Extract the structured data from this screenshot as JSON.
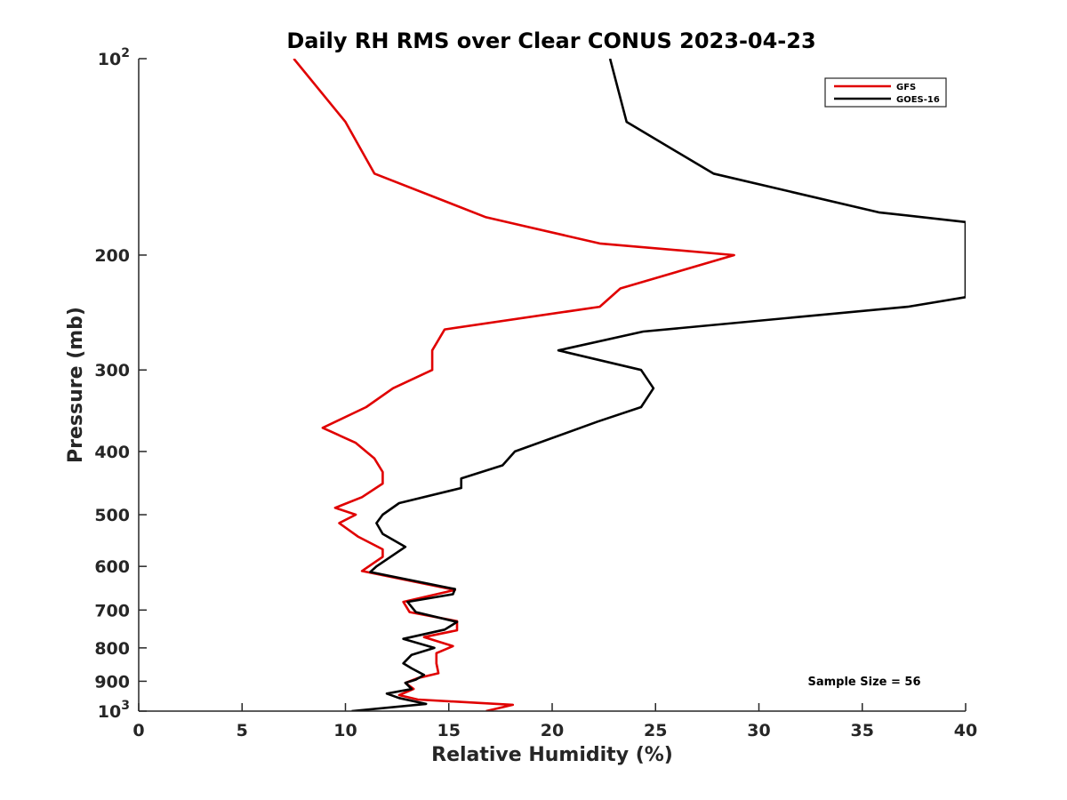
{
  "chart_data": {
    "type": "line",
    "title": "Daily RH RMS over Clear CONUS 2023-04-23",
    "xlabel": "Relative Humidity (%)",
    "ylabel": "Pressure (mb)",
    "xlim": [
      0,
      40
    ],
    "ylim": [
      100,
      1000
    ],
    "y_scale": "log",
    "y_reversed": true,
    "x_ticks": [
      0,
      5,
      10,
      15,
      20,
      25,
      30,
      35,
      40
    ],
    "x_tick_labels": [
      "0",
      "5",
      "10",
      "15",
      "20",
      "25",
      "30",
      "35",
      "40"
    ],
    "y_ticks": [
      100,
      200,
      300,
      400,
      500,
      600,
      700,
      800,
      900,
      1000
    ],
    "y_tick_labels": [
      {
        "base": "10",
        "exp": "2"
      },
      {
        "base": "200",
        "exp": ""
      },
      {
        "base": "300",
        "exp": ""
      },
      {
        "base": "400",
        "exp": ""
      },
      {
        "base": "500",
        "exp": ""
      },
      {
        "base": "600",
        "exp": ""
      },
      {
        "base": "700",
        "exp": ""
      },
      {
        "base": "800",
        "exp": ""
      },
      {
        "base": "900",
        "exp": ""
      },
      {
        "base": "10",
        "exp": "3"
      }
    ],
    "grid": false,
    "legend_position": "top-right",
    "annotation": "Sample Size = 56",
    "series": [
      {
        "name": "GFS",
        "color": "#e00000",
        "points": [
          [
            7.5,
            100
          ],
          [
            10.0,
            125
          ],
          [
            11.4,
            150
          ],
          [
            16.8,
            175
          ],
          [
            22.3,
            192
          ],
          [
            28.8,
            200
          ],
          [
            23.3,
            225
          ],
          [
            22.3,
            240
          ],
          [
            14.8,
            260
          ],
          [
            14.2,
            280
          ],
          [
            14.2,
            300
          ],
          [
            12.3,
            320
          ],
          [
            11.0,
            342
          ],
          [
            8.9,
            368
          ],
          [
            10.5,
            388
          ],
          [
            11.4,
            410
          ],
          [
            11.8,
            430
          ],
          [
            11.8,
            448
          ],
          [
            10.8,
            470
          ],
          [
            9.5,
            488
          ],
          [
            10.5,
            500
          ],
          [
            9.7,
            515
          ],
          [
            10.6,
            540
          ],
          [
            11.8,
            565
          ],
          [
            11.8,
            580
          ],
          [
            10.8,
            610
          ],
          [
            15.3,
            652
          ],
          [
            12.8,
            680
          ],
          [
            13.1,
            705
          ],
          [
            15.4,
            728
          ],
          [
            15.4,
            752
          ],
          [
            13.8,
            770
          ],
          [
            15.2,
            795
          ],
          [
            14.4,
            815
          ],
          [
            14.4,
            845
          ],
          [
            14.5,
            875
          ],
          [
            13.5,
            890
          ],
          [
            12.9,
            905
          ],
          [
            13.3,
            925
          ],
          [
            12.6,
            945
          ],
          [
            13.5,
            960
          ],
          [
            18.1,
            978
          ],
          [
            16.8,
            1000
          ]
        ]
      },
      {
        "name": "GOES-16",
        "color": "#000000",
        "points": [
          [
            22.8,
            100
          ],
          [
            23.6,
            125
          ],
          [
            27.8,
            150
          ],
          [
            35.8,
            172
          ],
          [
            40.0,
            178
          ],
          [
            40.0,
            232
          ],
          [
            37.2,
            240
          ],
          [
            24.4,
            262
          ],
          [
            20.3,
            280
          ],
          [
            24.3,
            300
          ],
          [
            24.9,
            320
          ],
          [
            24.3,
            342
          ],
          [
            22.2,
            360
          ],
          [
            18.2,
            400
          ],
          [
            17.6,
            420
          ],
          [
            15.6,
            440
          ],
          [
            15.6,
            455
          ],
          [
            12.6,
            480
          ],
          [
            11.8,
            500
          ],
          [
            11.5,
            515
          ],
          [
            11.8,
            535
          ],
          [
            12.9,
            560
          ],
          [
            11.5,
            600
          ],
          [
            11.2,
            612
          ],
          [
            15.3,
            650
          ],
          [
            15.2,
            662
          ],
          [
            13.0,
            680
          ],
          [
            13.4,
            705
          ],
          [
            15.4,
            730
          ],
          [
            14.8,
            750
          ],
          [
            12.8,
            775
          ],
          [
            14.3,
            800
          ],
          [
            13.2,
            820
          ],
          [
            12.8,
            845
          ],
          [
            13.2,
            860
          ],
          [
            13.8,
            880
          ],
          [
            13.4,
            895
          ],
          [
            12.9,
            905
          ],
          [
            13.2,
            925
          ],
          [
            12.0,
            940
          ],
          [
            12.6,
            955
          ],
          [
            13.9,
            975
          ],
          [
            10.3,
            1000
          ]
        ]
      }
    ]
  }
}
